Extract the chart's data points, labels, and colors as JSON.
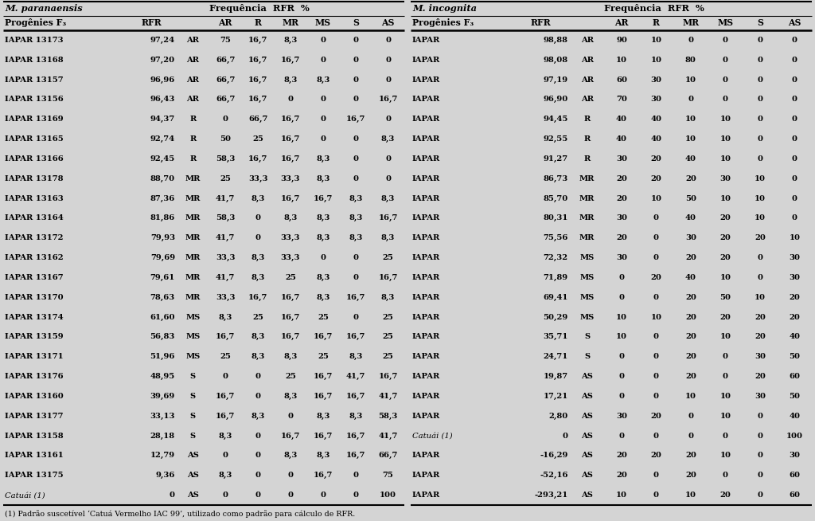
{
  "title_left": "M. paranaensis",
  "title_right": "M. incognita",
  "freq_label": "Frequência  RFR  %",
  "left_data": [
    [
      "IAPAR 13173",
      "97,24",
      "AR",
      "75",
      "16,7",
      "8,3",
      "0",
      "0",
      "0"
    ],
    [
      "IAPAR 13168",
      "97,20",
      "AR",
      "66,7",
      "16,7",
      "16,7",
      "0",
      "0",
      "0"
    ],
    [
      "IAPAR 13157",
      "96,96",
      "AR",
      "66,7",
      "16,7",
      "8,3",
      "8,3",
      "0",
      "0"
    ],
    [
      "IAPAR 13156",
      "96,43",
      "AR",
      "66,7",
      "16,7",
      "0",
      "0",
      "0",
      "16,7"
    ],
    [
      "IAPAR 13169",
      "94,37",
      "R",
      "0",
      "66,7",
      "16,7",
      "0",
      "16,7",
      "0"
    ],
    [
      "IAPAR 13165",
      "92,74",
      "R",
      "50",
      "25",
      "16,7",
      "0",
      "0",
      "8,3"
    ],
    [
      "IAPAR 13166",
      "92,45",
      "R",
      "58,3",
      "16,7",
      "16,7",
      "8,3",
      "0",
      "0"
    ],
    [
      "IAPAR 13178",
      "88,70",
      "MR",
      "25",
      "33,3",
      "33,3",
      "8,3",
      "0",
      "0"
    ],
    [
      "IAPAR 13163",
      "87,36",
      "MR",
      "41,7",
      "8,3",
      "16,7",
      "16,7",
      "8,3",
      "8,3"
    ],
    [
      "IAPAR 13164",
      "81,86",
      "MR",
      "58,3",
      "0",
      "8,3",
      "8,3",
      "8,3",
      "16,7"
    ],
    [
      "IAPAR 13172",
      "79,93",
      "MR",
      "41,7",
      "0",
      "33,3",
      "8,3",
      "8,3",
      "8,3"
    ],
    [
      "IAPAR 13162",
      "79,69",
      "MR",
      "33,3",
      "8,3",
      "33,3",
      "0",
      "0",
      "25"
    ],
    [
      "IAPAR 13167",
      "79,61",
      "MR",
      "41,7",
      "8,3",
      "25",
      "8,3",
      "0",
      "16,7"
    ],
    [
      "IAPAR 13170",
      "78,63",
      "MR",
      "33,3",
      "16,7",
      "16,7",
      "8,3",
      "16,7",
      "8,3"
    ],
    [
      "IAPAR 13174",
      "61,60",
      "MS",
      "8,3",
      "25",
      "16,7",
      "25",
      "0",
      "25"
    ],
    [
      "IAPAR 13159",
      "56,83",
      "MS",
      "16,7",
      "8,3",
      "16,7",
      "16,7",
      "16,7",
      "25"
    ],
    [
      "IAPAR 13171",
      "51,96",
      "MS",
      "25",
      "8,3",
      "8,3",
      "25",
      "8,3",
      "25"
    ],
    [
      "IAPAR 13176",
      "48,95",
      "S",
      "0",
      "0",
      "25",
      "16,7",
      "41,7",
      "16,7"
    ],
    [
      "IAPAR 13160",
      "39,69",
      "S",
      "16,7",
      "0",
      "8,3",
      "16,7",
      "16,7",
      "41,7"
    ],
    [
      "IAPAR 13177",
      "33,13",
      "S",
      "16,7",
      "8,3",
      "0",
      "8,3",
      "8,3",
      "58,3"
    ],
    [
      "IAPAR 13158",
      "28,18",
      "S",
      "8,3",
      "0",
      "16,7",
      "16,7",
      "16,7",
      "41,7"
    ],
    [
      "IAPAR 13161",
      "12,79",
      "AS",
      "0",
      "0",
      "8,3",
      "8,3",
      "16,7",
      "66,7"
    ],
    [
      "IAPAR 13175",
      "9,36",
      "AS",
      "8,3",
      "0",
      "0",
      "16,7",
      "0",
      "75"
    ],
    [
      "Catuái (1)",
      "0",
      "AS",
      "0",
      "0",
      "0",
      "0",
      "0",
      "100"
    ]
  ],
  "right_data": [
    [
      "IAPAR",
      "98,88",
      "AR",
      "90",
      "10",
      "0",
      "0",
      "0",
      "0"
    ],
    [
      "IAPAR",
      "98,08",
      "AR",
      "10",
      "10",
      "80",
      "0",
      "0",
      "0"
    ],
    [
      "IAPAR",
      "97,19",
      "AR",
      "60",
      "30",
      "10",
      "0",
      "0",
      "0"
    ],
    [
      "IAPAR",
      "96,90",
      "AR",
      "70",
      "30",
      "0",
      "0",
      "0",
      "0"
    ],
    [
      "IAPAR",
      "94,45",
      "R",
      "40",
      "40",
      "10",
      "10",
      "0",
      "0"
    ],
    [
      "IAPAR",
      "92,55",
      "R",
      "40",
      "40",
      "10",
      "10",
      "0",
      "0"
    ],
    [
      "IAPAR",
      "91,27",
      "R",
      "30",
      "20",
      "40",
      "10",
      "0",
      "0"
    ],
    [
      "IAPAR",
      "86,73",
      "MR",
      "20",
      "20",
      "20",
      "30",
      "10",
      "0"
    ],
    [
      "IAPAR",
      "85,70",
      "MR",
      "20",
      "10",
      "50",
      "10",
      "10",
      "0"
    ],
    [
      "IAPAR",
      "80,31",
      "MR",
      "30",
      "0",
      "40",
      "20",
      "10",
      "0"
    ],
    [
      "IAPAR",
      "75,56",
      "MR",
      "20",
      "0",
      "30",
      "20",
      "20",
      "10"
    ],
    [
      "IAPAR",
      "72,32",
      "MS",
      "30",
      "0",
      "20",
      "20",
      "0",
      "30"
    ],
    [
      "IAPAR",
      "71,89",
      "MS",
      "0",
      "20",
      "40",
      "10",
      "0",
      "30"
    ],
    [
      "IAPAR",
      "69,41",
      "MS",
      "0",
      "0",
      "20",
      "50",
      "10",
      "20"
    ],
    [
      "IAPAR",
      "50,29",
      "MS",
      "10",
      "10",
      "20",
      "20",
      "20",
      "20"
    ],
    [
      "IAPAR",
      "35,71",
      "S",
      "10",
      "0",
      "20",
      "10",
      "20",
      "40"
    ],
    [
      "IAPAR",
      "24,71",
      "S",
      "0",
      "0",
      "20",
      "0",
      "30",
      "50"
    ],
    [
      "IAPAR",
      "19,87",
      "AS",
      "0",
      "0",
      "20",
      "0",
      "20",
      "60"
    ],
    [
      "IAPAR",
      "17,21",
      "AS",
      "0",
      "0",
      "10",
      "10",
      "30",
      "50"
    ],
    [
      "IAPAR",
      "2,80",
      "AS",
      "30",
      "20",
      "0",
      "10",
      "0",
      "40"
    ],
    [
      "Catuái (1)",
      "0",
      "AS",
      "0",
      "0",
      "0",
      "0",
      "0",
      "100"
    ],
    [
      "IAPAR",
      "-16,29",
      "AS",
      "20",
      "20",
      "20",
      "10",
      "0",
      "30"
    ],
    [
      "IAPAR",
      "-52,16",
      "AS",
      "20",
      "0",
      "20",
      "0",
      "0",
      "60"
    ],
    [
      "IAPAR",
      "-293,21",
      "AS",
      "10",
      "0",
      "10",
      "20",
      "0",
      "60"
    ]
  ],
  "footnote": "(1) Padrão suscetível ‘Catuá Vermelho IAC 99’, utilizado como padrão para cálculo de RFR.",
  "bg_color": "#d4d4d4",
  "text_color": "#000000",
  "font_size": 7.2,
  "header_font_size": 7.8,
  "title_font_size": 8.2,
  "footnote_font_size": 6.8
}
